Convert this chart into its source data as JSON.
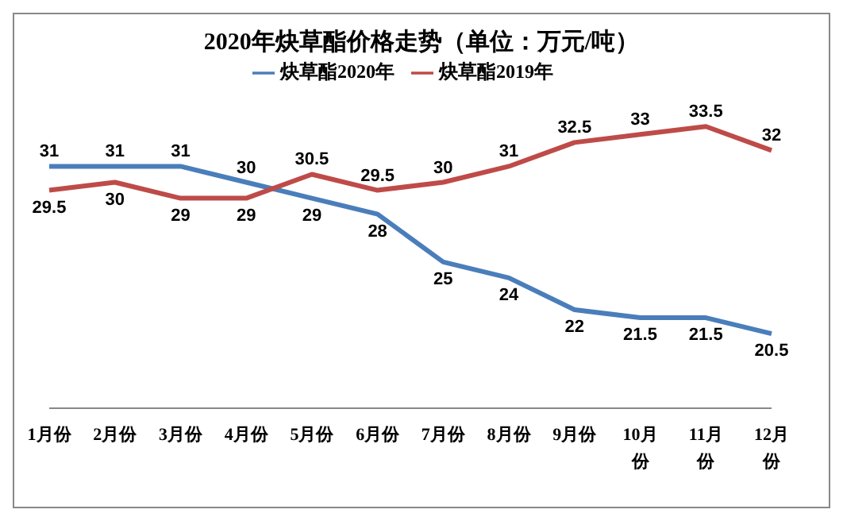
{
  "chart_data": {
    "type": "line",
    "title": "2020年炔草酯价格走势（单位：万元/吨）",
    "categories": [
      "1月份",
      "2月份",
      "3月份",
      "4月份",
      "5月份",
      "6月份",
      "7月份",
      "8月份",
      "9月份",
      "10月份",
      "11月份",
      "12月份"
    ],
    "series": [
      {
        "name": "炔草酯2020年",
        "color": "#4a7ebb",
        "values": [
          31,
          31,
          31,
          30,
          29,
          28,
          25,
          24,
          22,
          21.5,
          21.5,
          20.5
        ]
      },
      {
        "name": "炔草酯2019年",
        "color": "#be4b48",
        "values": [
          29.5,
          30,
          29,
          29,
          30.5,
          29.5,
          30,
          31,
          32.5,
          33,
          33.5,
          32
        ]
      }
    ],
    "data_labels": true,
    "legend": "top",
    "tick_labels": "x",
    "marker": "none",
    "grid": false
  }
}
